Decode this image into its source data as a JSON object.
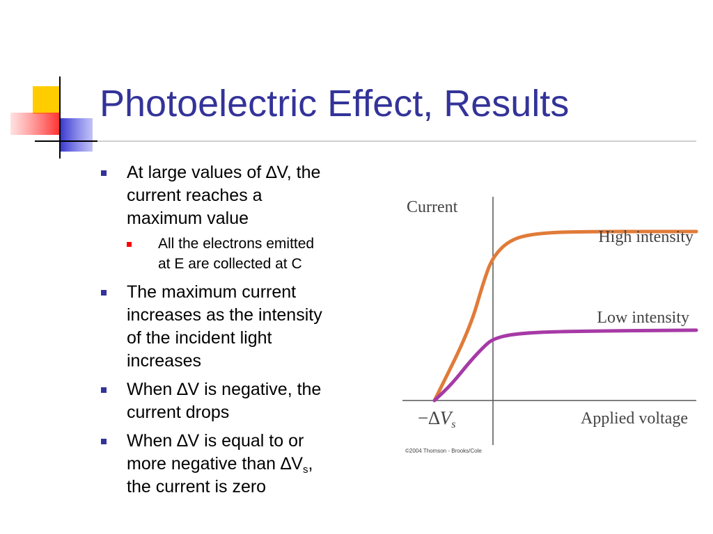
{
  "slide": {
    "title": "Photoelectric Effect, Results",
    "colors": {
      "title": "#333399",
      "bullet": "#333399",
      "sub_bullet": "#ff0000"
    },
    "bullets": [
      {
        "lines": [
          "At large values of  ∆V, the",
          "current reaches a",
          "maximum value"
        ]
      },
      {
        "lines": [
          "All the electrons emitted",
          "at E are collected at C"
        ]
      },
      {
        "lines": [
          "The maximum current",
          "increases as the intensity",
          "of the incident light",
          "increases"
        ]
      },
      {
        "lines": [
          "When ∆V is negative, the",
          "current drops"
        ]
      },
      {
        "lines": [
          "When ∆V is equal to or",
          "more negative than ∆V",
          "the current is zero"
        ],
        "sub_symbol": "s",
        "sub_suffix": ","
      }
    ]
  },
  "chart_data": {
    "type": "line",
    "ylabel": "Current",
    "xlabel": "Applied voltage",
    "x_tick_label": "−∆",
    "x_tick_var": "V",
    "x_tick_sub": "s",
    "credit": "©2004 Thomson - Brooks/Cole",
    "x_units_note": "0 = stopping voltage (−∆Vs), 1 = zero volts, 4 = far right",
    "xlim": [
      0,
      4.0
    ],
    "ylim": [
      0,
      10
    ],
    "series": [
      {
        "name": "High intensity",
        "color": "#e07b39",
        "points": [
          [
            0,
            0
          ],
          [
            0.6,
            3.4
          ],
          [
            0.85,
            5.8
          ],
          [
            1.0,
            6.9
          ],
          [
            1.25,
            7.7
          ],
          [
            1.6,
            8.0
          ],
          [
            2.2,
            8.1
          ],
          [
            4.0,
            8.1
          ]
        ]
      },
      {
        "name": "Low intensity",
        "color": "#a63aa6",
        "points": [
          [
            0,
            0
          ],
          [
            0.3,
            0.8
          ],
          [
            0.6,
            1.85
          ],
          [
            0.85,
            2.6
          ],
          [
            1.0,
            2.95
          ],
          [
            1.3,
            3.2
          ],
          [
            2.0,
            3.32
          ],
          [
            4.0,
            3.37
          ]
        ]
      }
    ]
  }
}
